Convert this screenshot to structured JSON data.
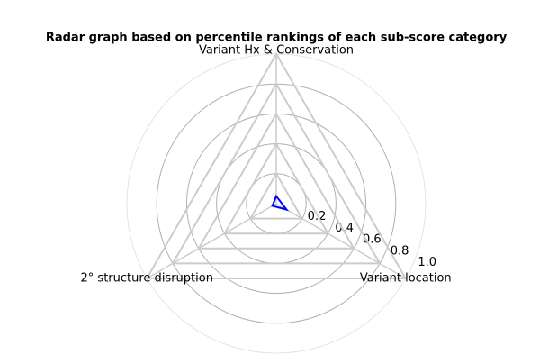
{
  "chart_data": {
    "type": "radar",
    "title": "Radar graph based on percentile rankings of each sub-score category",
    "categories": [
      "Variant Hx & Conservation",
      "Variant location",
      "2° structure disruption"
    ],
    "series": [
      {
        "color": "#0000ff",
        "values": [
          0.05,
          0.08,
          0.03
        ]
      }
    ],
    "ylim": [
      0,
      1
    ],
    "yticks": [
      0.2,
      0.4,
      0.6,
      0.8,
      {
        "value": 1,
        "label": "1.0"
      }
    ],
    "grid": true
  }
}
